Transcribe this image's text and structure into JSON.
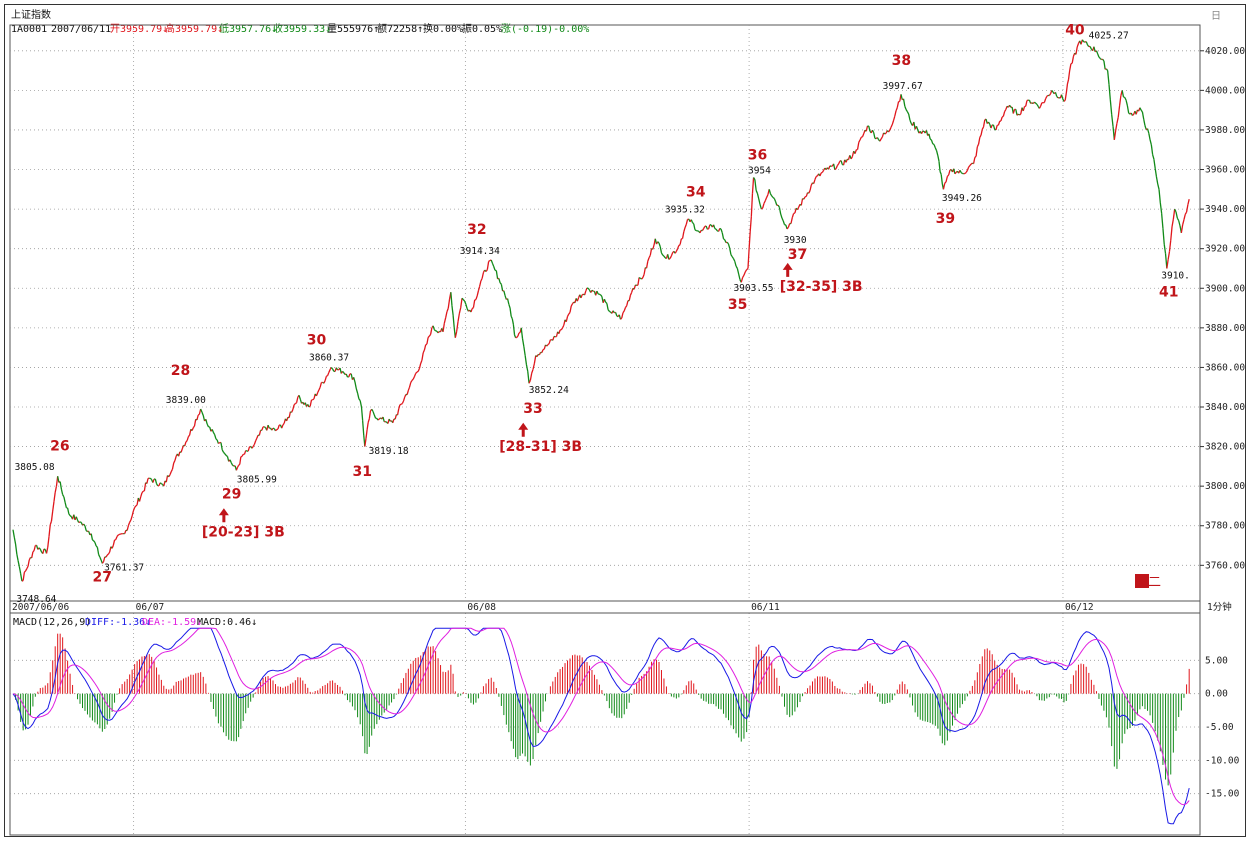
{
  "header": {
    "title": "上证指数",
    "code": "1A0001",
    "date": "2007/06/11",
    "open": "开3959.79↓",
    "high": "高3959.79↓",
    "low": "低3957.76↓",
    "close": "收3959.33↓",
    "volume": "量555976↑",
    "amount": "额72258↑",
    "turnover": "换0.00%",
    "amplitude": "振0.05%",
    "change": "涨(-0.19)-0.00%",
    "corner": "日"
  },
  "colors": {
    "up": "#e0161c",
    "down": "#118a18",
    "annotation": "#c0151a",
    "diff": "#1a1ae6",
    "dea": "#e020e0",
    "grid": "#9a9a9a"
  },
  "chart_data": [
    {
      "type": "line",
      "subtype": "1-minute intraday price (up segments red, down segments green)",
      "x": [
        "2007/06/06",
        "06/07",
        "06/08",
        "06/11",
        "06/12"
      ],
      "ylim": [
        3745,
        4030
      ],
      "y_ticks": [
        "4020.00",
        "4000.00",
        "3980.00",
        "3960.00",
        "3940.00",
        "3920.00",
        "3900.00",
        "3880.00",
        "3860.00",
        "3840.00",
        "3820.00",
        "3800.00",
        "3780.00",
        "3760.00"
      ],
      "x_labels": [
        "2007/06/06",
        "06/07",
        "06/08",
        "06/11",
        "06/12"
      ],
      "period_label": "1分钟",
      "grid": true,
      "price_labels": [
        {
          "text": "3748.64",
          "value": 3748.64
        },
        {
          "text": "3805.08",
          "value": 3805.08
        },
        {
          "text": "3761.37",
          "value": 3761.37
        },
        {
          "text": "3839.00",
          "value": 3839.0
        },
        {
          "text": "3805.99",
          "value": 3805.99
        },
        {
          "text": "3860.37",
          "value": 3860.37
        },
        {
          "text": "3819.18",
          "value": 3819.18
        },
        {
          "text": "3914.34",
          "value": 3914.34
        },
        {
          "text": "3852.24",
          "value": 3852.24
        },
        {
          "text": "3935.32",
          "value": 3935.32
        },
        {
          "text": "3903.55",
          "value": 3903.55
        },
        {
          "text": "3954",
          "value": 3954
        },
        {
          "text": "3930",
          "value": 3930
        },
        {
          "text": "3997.67",
          "value": 3997.67
        },
        {
          "text": "3949.26",
          "value": 3949.26
        },
        {
          "text": "4025.27",
          "value": 4025.27
        },
        {
          "text": "3910.",
          "value": 3910
        }
      ],
      "wave_labels": [
        "26",
        "27",
        "28",
        "29",
        "30",
        "31",
        "32",
        "33",
        "34",
        "35",
        "36",
        "37",
        "38",
        "39",
        "40",
        "41"
      ],
      "signals": [
        "[20-23] 3B",
        "[28-31] 3B",
        "[32-35] 3B"
      ],
      "price_series": [
        {
          "t": 0.0,
          "v": 3778
        },
        {
          "t": 0.8,
          "v": 3752
        },
        {
          "t": 2.0,
          "v": 3770
        },
        {
          "t": 3.0,
          "v": 3766
        },
        {
          "t": 4.0,
          "v": 3805
        },
        {
          "t": 5.0,
          "v": 3786
        },
        {
          "t": 6.0,
          "v": 3782
        },
        {
          "t": 7.0,
          "v": 3776
        },
        {
          "t": 8.0,
          "v": 3761
        },
        {
          "t": 9.2,
          "v": 3773
        },
        {
          "t": 10.0,
          "v": 3776
        },
        {
          "t": 11.0,
          "v": 3790
        },
        {
          "t": 12.2,
          "v": 3804
        },
        {
          "t": 13.5,
          "v": 3800
        },
        {
          "t": 14.5,
          "v": 3813
        },
        {
          "t": 15.7,
          "v": 3825
        },
        {
          "t": 16.8,
          "v": 3839
        },
        {
          "t": 17.5,
          "v": 3830
        },
        {
          "t": 18.5,
          "v": 3822
        },
        {
          "t": 19.2,
          "v": 3815
        },
        {
          "t": 20.0,
          "v": 3808
        },
        {
          "t": 20.5,
          "v": 3815
        },
        {
          "t": 21.5,
          "v": 3820
        },
        {
          "t": 22.5,
          "v": 3830
        },
        {
          "t": 23.5,
          "v": 3828
        },
        {
          "t": 24.5,
          "v": 3833
        },
        {
          "t": 25.5,
          "v": 3845
        },
        {
          "t": 26.5,
          "v": 3840
        },
        {
          "t": 27.5,
          "v": 3850
        },
        {
          "t": 28.5,
          "v": 3860
        },
        {
          "t": 29.5,
          "v": 3858
        },
        {
          "t": 30.5,
          "v": 3855
        },
        {
          "t": 31.2,
          "v": 3840
        },
        {
          "t": 31.5,
          "v": 3820
        },
        {
          "t": 32.0,
          "v": 3838
        },
        {
          "t": 32.8,
          "v": 3834
        },
        {
          "t": 34.0,
          "v": 3832
        },
        {
          "t": 35.5,
          "v": 3850
        },
        {
          "t": 36.5,
          "v": 3862
        },
        {
          "t": 37.5,
          "v": 3880
        },
        {
          "t": 38.5,
          "v": 3878
        },
        {
          "t": 39.2,
          "v": 3898
        },
        {
          "t": 39.6,
          "v": 3875
        },
        {
          "t": 40.2,
          "v": 3895
        },
        {
          "t": 41.0,
          "v": 3888
        },
        {
          "t": 42.0,
          "v": 3905
        },
        {
          "t": 42.7,
          "v": 3914
        },
        {
          "t": 43.5,
          "v": 3905
        },
        {
          "t": 44.5,
          "v": 3890
        },
        {
          "t": 45.0,
          "v": 3875
        },
        {
          "t": 45.5,
          "v": 3880
        },
        {
          "t": 46.2,
          "v": 3852
        },
        {
          "t": 46.8,
          "v": 3866
        },
        {
          "t": 48.0,
          "v": 3872
        },
        {
          "t": 49.2,
          "v": 3880
        },
        {
          "t": 50.2,
          "v": 3893
        },
        {
          "t": 51.5,
          "v": 3900
        },
        {
          "t": 52.5,
          "v": 3897
        },
        {
          "t": 53.5,
          "v": 3888
        },
        {
          "t": 54.5,
          "v": 3885
        },
        {
          "t": 55.5,
          "v": 3900
        },
        {
          "t": 56.5,
          "v": 3907
        },
        {
          "t": 57.5,
          "v": 3925
        },
        {
          "t": 58.5,
          "v": 3915
        },
        {
          "t": 59.5,
          "v": 3920
        },
        {
          "t": 60.5,
          "v": 3935
        },
        {
          "t": 61.5,
          "v": 3928
        },
        {
          "t": 62.5,
          "v": 3932
        },
        {
          "t": 63.5,
          "v": 3928
        },
        {
          "t": 64.5,
          "v": 3915
        },
        {
          "t": 65.2,
          "v": 3903
        },
        {
          "t": 65.8,
          "v": 3910
        },
        {
          "t": 66.3,
          "v": 3956
        },
        {
          "t": 67.0,
          "v": 3940
        },
        {
          "t": 67.7,
          "v": 3950
        },
        {
          "t": 68.5,
          "v": 3942
        },
        {
          "t": 69.3,
          "v": 3930
        },
        {
          "t": 70.0,
          "v": 3938
        },
        {
          "t": 70.8,
          "v": 3945
        },
        {
          "t": 71.8,
          "v": 3955
        },
        {
          "t": 72.8,
          "v": 3960
        },
        {
          "t": 73.8,
          "v": 3962
        },
        {
          "t": 74.8,
          "v": 3965
        },
        {
          "t": 75.5,
          "v": 3970
        },
        {
          "t": 76.5,
          "v": 3982
        },
        {
          "t": 77.5,
          "v": 3975
        },
        {
          "t": 78.5,
          "v": 3980
        },
        {
          "t": 79.5,
          "v": 3998
        },
        {
          "t": 80.3,
          "v": 3985
        },
        {
          "t": 81.0,
          "v": 3980
        },
        {
          "t": 82.0,
          "v": 3978
        },
        {
          "t": 82.8,
          "v": 3967
        },
        {
          "t": 83.3,
          "v": 3950
        },
        {
          "t": 84.0,
          "v": 3960
        },
        {
          "t": 85.0,
          "v": 3958
        },
        {
          "t": 86.0,
          "v": 3963
        },
        {
          "t": 87.0,
          "v": 3985
        },
        {
          "t": 88.0,
          "v": 3980
        },
        {
          "t": 89.0,
          "v": 3992
        },
        {
          "t": 90.0,
          "v": 3988
        },
        {
          "t": 91.0,
          "v": 3995
        },
        {
          "t": 92.0,
          "v": 3992
        },
        {
          "t": 93.0,
          "v": 4000
        },
        {
          "t": 94.2,
          "v": 3995
        },
        {
          "t": 94.6,
          "v": 4010
        },
        {
          "t": 95.5,
          "v": 4025
        },
        {
          "t": 96.2,
          "v": 4023
        },
        {
          "t": 97.0,
          "v": 4020
        },
        {
          "t": 98.0,
          "v": 4010
        },
        {
          "t": 98.6,
          "v": 3975
        },
        {
          "t": 99.3,
          "v": 4000
        },
        {
          "t": 100.0,
          "v": 3988
        },
        {
          "t": 101.0,
          "v": 3990
        },
        {
          "t": 101.8,
          "v": 3975
        },
        {
          "t": 102.6,
          "v": 3950
        },
        {
          "t": 103.3,
          "v": 3910
        },
        {
          "t": 104.0,
          "v": 3940
        },
        {
          "t": 104.6,
          "v": 3928
        },
        {
          "t": 105.3,
          "v": 3945
        }
      ]
    },
    {
      "type": "line",
      "subtype": "MACD indicator panel (histogram + DIFF + DEA)",
      "legend": [
        "MACD(12,26,9)",
        "DIFF:-1.36↓",
        "DEA:-1.59↓",
        "MACD:0.46↓"
      ],
      "ylim": [
        -20,
        10
      ],
      "y_ticks": [
        "5.00",
        "0.00",
        "-5.00",
        "-10.00",
        "-15.00"
      ],
      "grid": true
    }
  ],
  "badge": "图二"
}
